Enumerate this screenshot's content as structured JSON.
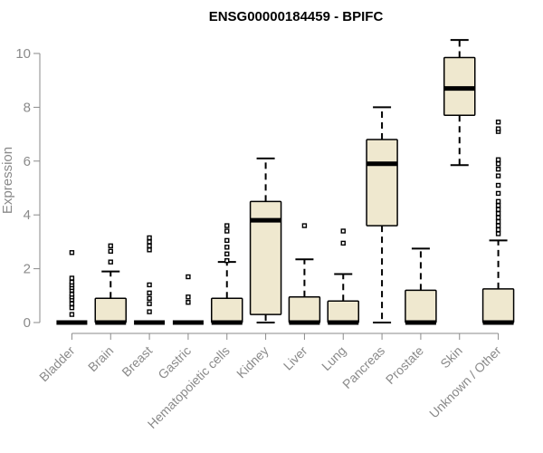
{
  "chart_data": {
    "type": "box",
    "title": "ENSG00000184459 - BPIFC",
    "xlabel": "",
    "ylabel": "Expression",
    "ylim": [
      0,
      10.6
    ],
    "yticks": [
      0,
      2,
      4,
      6,
      8,
      10
    ],
    "grid": false,
    "box_fill": "#efe8cf",
    "box_stroke": "#000000",
    "categories": [
      "Bladder",
      "Brain",
      "Breast",
      "Gastric",
      "Hematopoietic cells",
      "Kidney",
      "Liver",
      "Lung",
      "Pancreas",
      "Prostate",
      "Skin",
      "Unknown / Other"
    ],
    "boxes": [
      {
        "q1": 0,
        "median": 0,
        "q3": 0,
        "whisker_low": 0,
        "whisker_high": 0,
        "outliers": [
          0.3,
          0.55,
          0.7,
          0.85,
          0.95,
          1.05,
          1.2,
          1.3,
          1.4,
          1.5,
          1.65,
          2.6
        ]
      },
      {
        "q1": 0,
        "median": 0,
        "q3": 0.9,
        "whisker_low": 0,
        "whisker_high": 1.9,
        "outliers": [
          2.25,
          2.65,
          2.85
        ]
      },
      {
        "q1": 0,
        "median": 0,
        "q3": 0,
        "whisker_low": 0,
        "whisker_high": 0,
        "outliers": [
          0.4,
          0.7,
          0.9,
          1.1,
          1.4,
          2.7,
          2.85,
          3.0,
          3.15
        ]
      },
      {
        "q1": 0,
        "median": 0,
        "q3": 0,
        "whisker_low": 0,
        "whisker_high": 0,
        "outliers": [
          0.75,
          0.95,
          1.7
        ]
      },
      {
        "q1": 0,
        "median": 0,
        "q3": 0.9,
        "whisker_low": 0,
        "whisker_high": 2.25,
        "outliers": [
          2.3,
          2.55,
          2.8,
          3.05,
          3.4,
          3.6
        ]
      },
      {
        "q1": 0.3,
        "median": 3.8,
        "q3": 4.5,
        "whisker_low": 0,
        "whisker_high": 6.1,
        "outliers": []
      },
      {
        "q1": 0,
        "median": 0,
        "q3": 0.95,
        "whisker_low": 0,
        "whisker_high": 2.35,
        "outliers": [
          3.6
        ]
      },
      {
        "q1": 0,
        "median": 0,
        "q3": 0.8,
        "whisker_low": 0,
        "whisker_high": 1.8,
        "outliers": [
          2.95,
          3.4
        ]
      },
      {
        "q1": 3.6,
        "median": 5.9,
        "q3": 6.8,
        "whisker_low": 0,
        "whisker_high": 8.0,
        "outliers": []
      },
      {
        "q1": 0,
        "median": 0,
        "q3": 1.2,
        "whisker_low": 0,
        "whisker_high": 2.75,
        "outliers": []
      },
      {
        "q1": 7.7,
        "median": 8.7,
        "q3": 9.85,
        "whisker_low": 5.85,
        "whisker_high": 10.5,
        "outliers": []
      },
      {
        "q1": 0,
        "median": 0,
        "q3": 1.25,
        "whisker_low": 0,
        "whisker_high": 3.05,
        "outliers": [
          3.3,
          3.45,
          3.6,
          3.75,
          3.9,
          4.05,
          4.2,
          4.35,
          4.5,
          4.8,
          5.1,
          5.45,
          5.7,
          5.9,
          6.05,
          7.1,
          7.2,
          7.45
        ]
      }
    ]
  }
}
